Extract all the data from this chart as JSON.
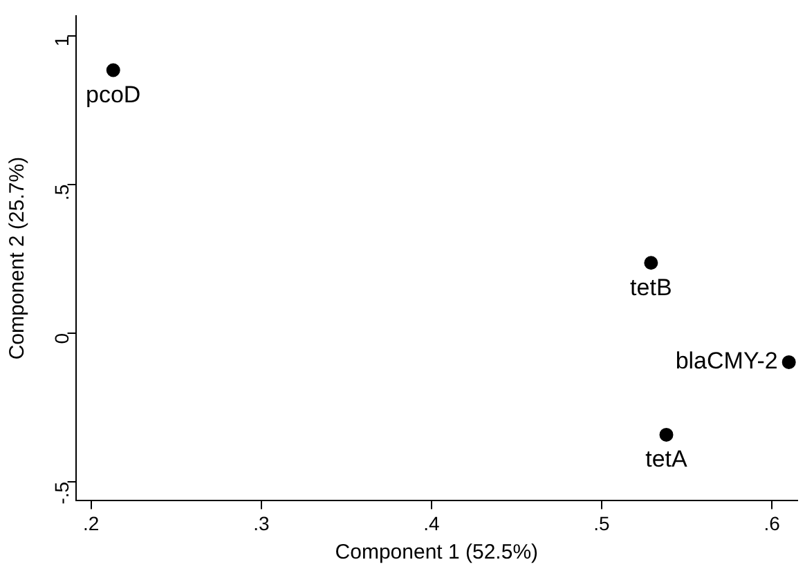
{
  "chart_data": {
    "type": "scatter",
    "xlabel": "Component 1 (52.5%)",
    "ylabel": "Component 2 (25.7%)",
    "x": [
      0.213,
      0.529,
      0.61,
      0.538
    ],
    "values": [
      0.884,
      0.236,
      -0.098,
      -0.342
    ],
    "color": "#000000",
    "marker": "circle",
    "grid": false,
    "legend": false,
    "xlim": [
      0.191,
      0.615
    ],
    "ylim": [
      -0.564,
      1.067
    ],
    "xticks": [
      {
        "value": 0.2,
        "label": ".2"
      },
      {
        "value": 0.3,
        "label": ".3"
      },
      {
        "value": 0.4,
        "label": ".4"
      },
      {
        "value": 0.5,
        "label": ".5"
      },
      {
        "value": 0.6,
        "label": ".6"
      }
    ],
    "yticks": [
      {
        "value": -0.5,
        "label": "-.5"
      },
      0,
      {
        "value": 0.5,
        "label": ".5"
      },
      1
    ],
    "annotations": [
      {
        "text": "pcoD",
        "x": 0.213,
        "y": 0.884
      },
      {
        "text": "tetB",
        "x": 0.529,
        "y": 0.236
      },
      {
        "text": "blaCMY-2",
        "x": 0.61,
        "y": -0.098
      },
      {
        "text": "tetA",
        "x": 0.538,
        "y": -0.342
      }
    ]
  }
}
